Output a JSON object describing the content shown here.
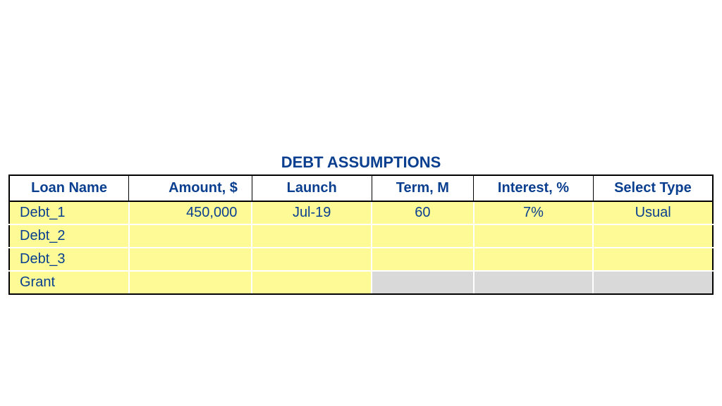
{
  "title": "DEBT ASSUMPTIONS",
  "colors": {
    "header_text": "#0a3f8f",
    "cell_text": "#0a3f8f",
    "title_text": "#0a3f8f",
    "yellow_bg": "#fefb96",
    "grey_bg": "#d9d9d9",
    "table_border": "#000000",
    "cell_divider": "#ffffff"
  },
  "columns": [
    "Loan Name",
    "Amount, $",
    "Launch",
    "Term, M",
    "Interest, %",
    "Select Type"
  ],
  "rows": [
    {
      "name": "Debt_1",
      "amount": "450,000",
      "launch": "Jul-19",
      "term": "60",
      "interest": "7%",
      "type": "Usual",
      "cell_bg": [
        "yellow",
        "yellow",
        "yellow",
        "yellow",
        "yellow",
        "yellow"
      ]
    },
    {
      "name": "Debt_2",
      "amount": "",
      "launch": "",
      "term": "",
      "interest": "",
      "type": "",
      "cell_bg": [
        "yellow",
        "yellow",
        "yellow",
        "yellow",
        "yellow",
        "yellow"
      ]
    },
    {
      "name": "Debt_3",
      "amount": "",
      "launch": "",
      "term": "",
      "interest": "",
      "type": "",
      "cell_bg": [
        "yellow",
        "yellow",
        "yellow",
        "yellow",
        "yellow",
        "yellow"
      ]
    },
    {
      "name": "Grant",
      "amount": "",
      "launch": "",
      "term": "",
      "interest": "",
      "type": "",
      "cell_bg": [
        "yellow",
        "yellow",
        "yellow",
        "grey",
        "grey",
        "grey"
      ]
    }
  ],
  "typography": {
    "title_fontsize": 22,
    "header_fontsize": 20,
    "cell_fontsize": 20,
    "font_family": "Verdana"
  }
}
